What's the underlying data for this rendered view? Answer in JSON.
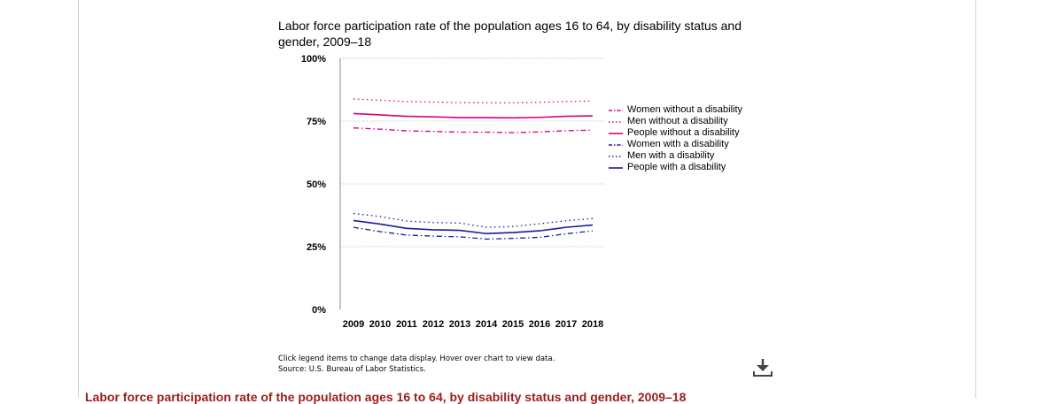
{
  "chart_data": {
    "type": "line",
    "title": "Labor force participation rate of the population ages 16 to 64, by disability status and gender, 2009–18",
    "categories": [
      "2009",
      "2010",
      "2011",
      "2012",
      "2013",
      "2014",
      "2015",
      "2016",
      "2017",
      "2018"
    ],
    "y_ticks": [
      "0%",
      "25%",
      "50%",
      "75%",
      "100%"
    ],
    "ylim": [
      0,
      100
    ],
    "grid": "horizontal dotted",
    "legend_position": "right",
    "series": [
      {
        "name": "Women without a disability",
        "style": "dash-dot",
        "color": "#d6007e",
        "values": [
          72.3,
          71.8,
          71.1,
          70.9,
          70.6,
          70.6,
          70.4,
          70.7,
          71.2,
          71.4
        ]
      },
      {
        "name": "Men without a disability",
        "style": "dotted",
        "color": "#d6007e",
        "values": [
          83.8,
          83.3,
          82.8,
          82.6,
          82.4,
          82.3,
          82.3,
          82.5,
          82.8,
          83.0
        ]
      },
      {
        "name": "People without a disability",
        "style": "solid",
        "color": "#d6007e",
        "values": [
          78.0,
          77.5,
          76.9,
          76.7,
          76.4,
          76.4,
          76.3,
          76.5,
          76.9,
          77.1
        ]
      },
      {
        "name": "Women with a disability",
        "style": "dash-dot",
        "color": "#1a1a9c",
        "values": [
          32.7,
          31.0,
          29.6,
          29.2,
          28.9,
          28.0,
          28.3,
          28.7,
          30.1,
          31.3
        ]
      },
      {
        "name": "Men with a disability",
        "style": "dotted",
        "color": "#1a1a9c",
        "values": [
          38.2,
          37.0,
          35.2,
          34.6,
          34.4,
          32.7,
          33.0,
          34.1,
          35.3,
          36.2
        ]
      },
      {
        "name": "People with a disability",
        "style": "solid",
        "color": "#1a1a9c",
        "values": [
          35.4,
          34.0,
          32.3,
          31.7,
          31.5,
          30.2,
          30.6,
          31.3,
          32.7,
          33.6
        ]
      }
    ]
  },
  "notes": {
    "instruction": "Click legend items to change data display. Hover over chart to view data.",
    "source": "Source: U.S. Bureau of Labor Statistics."
  },
  "download": {
    "icon": "download-icon"
  },
  "section_heading": "Labor force participation rate of the population ages 16 to 64, by disability status and gender, 2009–18"
}
